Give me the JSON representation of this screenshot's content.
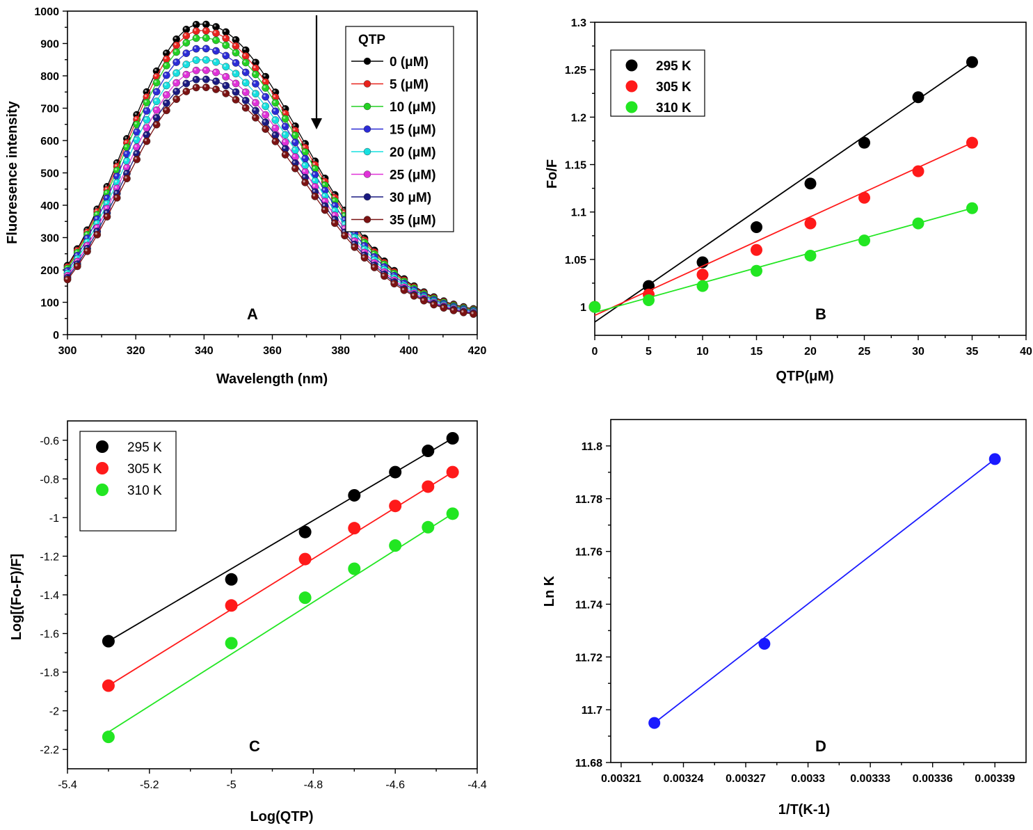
{
  "chart_data": [
    {
      "id": "A",
      "type": "line",
      "panel_label": "A",
      "title": "",
      "xlabel": "Wavelength (nm)",
      "ylabel": "Fluoresence intensity",
      "xlim": [
        300,
        420
      ],
      "ylim": [
        0,
        1000
      ],
      "xticks": [
        300,
        320,
        340,
        360,
        380,
        400,
        420
      ],
      "yticks": [
        0,
        100,
        200,
        300,
        400,
        500,
        600,
        700,
        800,
        900,
        1000
      ],
      "legend_title": "QTP",
      "legend_position": "top-right",
      "annotation": "downward arrow indicating decreasing intensity with increasing QTP",
      "x": [
        300,
        340,
        420
      ],
      "series": [
        {
          "name": "0 (μM)",
          "color": "#000000",
          "peak": 960
        },
        {
          "name": "5 (μM)",
          "color": "#e8231d",
          "peak": 940
        },
        {
          "name": "10 (μM)",
          "color": "#23d123",
          "peak": 918
        },
        {
          "name": "15 (μM)",
          "color": "#2b2bd6",
          "peak": 885
        },
        {
          "name": "20 (μM)",
          "color": "#16e0e0",
          "peak": 850
        },
        {
          "name": "25 (μM)",
          "color": "#e031d8",
          "peak": 818
        },
        {
          "name": "30 μM)",
          "color": "#1a1a80",
          "peak": 790
        },
        {
          "name": "35 (μM)",
          "color": "#7a1212",
          "peak": 765
        }
      ]
    },
    {
      "id": "B",
      "type": "scatter",
      "panel_label": "B",
      "xlabel": "QTP(μM)",
      "ylabel": "Fo/F",
      "xlim": [
        0,
        40
      ],
      "ylim": [
        0.97,
        1.3
      ],
      "xticks": [
        0,
        5,
        10,
        15,
        20,
        25,
        30,
        35,
        40
      ],
      "yticks": [
        1,
        1.05,
        1.1,
        1.15,
        1.2,
        1.25,
        1.3
      ],
      "legend_position": "top-left",
      "x": [
        0,
        5,
        10,
        15,
        20,
        25,
        30,
        35
      ],
      "series": [
        {
          "name": "295 K",
          "color": "#000000",
          "values": [
            1.0,
            1.022,
            1.047,
            1.084,
            1.13,
            1.173,
            1.221,
            1.258
          ],
          "fit": [
            [
              0,
              0.984
            ],
            [
              35,
              1.258
            ]
          ]
        },
        {
          "name": "305 K",
          "color": "#ff1a1a",
          "values": [
            1.0,
            1.013,
            1.034,
            1.06,
            1.088,
            1.115,
            1.143,
            1.173
          ],
          "fit": [
            [
              0,
              0.991
            ],
            [
              35,
              1.173
            ]
          ]
        },
        {
          "name": "310 K",
          "color": "#22e622",
          "values": [
            1.0,
            1.007,
            1.022,
            1.038,
            1.054,
            1.07,
            1.088,
            1.104
          ],
          "fit": [
            [
              0,
              0.994
            ],
            [
              35,
              1.104
            ]
          ]
        }
      ]
    },
    {
      "id": "C",
      "type": "scatter",
      "panel_label": "C",
      "xlabel": "Log(QTP)",
      "ylabel": "Log[(Fo-F)/F]",
      "xlim": [
        -5.4,
        -4.4
      ],
      "ylim": [
        -2.3,
        -0.5
      ],
      "xticks": [
        -5.4,
        -5.2,
        -5,
        -4.8,
        -4.6,
        -4.4
      ],
      "yticks": [
        -2.2,
        -2,
        -1.8,
        -1.6,
        -1.4,
        -1.2,
        -1,
        -0.8,
        -0.6
      ],
      "legend_position": "top-left",
      "x": [
        -5.3,
        -5.0,
        -4.82,
        -4.7,
        -4.6,
        -4.52,
        -4.46
      ],
      "series": [
        {
          "name": "295 K",
          "color": "#000000",
          "values": [
            -1.64,
            -1.32,
            -1.075,
            -0.885,
            -0.765,
            -0.655,
            -0.59
          ],
          "fit": [
            [
              -5.3,
              -1.64
            ],
            [
              -4.46,
              -0.59
            ]
          ]
        },
        {
          "name": "305 K",
          "color": "#ff1a1a",
          "values": [
            -1.87,
            -1.455,
            -1.215,
            -1.055,
            -0.94,
            -0.84,
            -0.765
          ],
          "fit": [
            [
              -5.3,
              -1.87
            ],
            [
              -4.46,
              -0.765
            ]
          ]
        },
        {
          "name": "310 K",
          "color": "#22e622",
          "values": [
            -2.135,
            -1.65,
            -1.415,
            -1.265,
            -1.145,
            -1.05,
            -0.98
          ],
          "fit": [
            [
              -5.3,
              -2.11
            ],
            [
              -4.46,
              -0.98
            ]
          ]
        }
      ]
    },
    {
      "id": "D",
      "type": "scatter",
      "panel_label": "D",
      "xlabel": "1/T(K-1)",
      "ylabel": "Ln K",
      "xlim": [
        0.003205,
        0.003405
      ],
      "ylim": [
        11.68,
        11.81
      ],
      "xticks": [
        0.00321,
        0.00324,
        0.00327,
        0.0033,
        0.00333,
        0.00336,
        0.00339
      ],
      "yticks": [
        11.68,
        11.7,
        11.72,
        11.74,
        11.76,
        11.78,
        11.8
      ],
      "x": [
        0.003226,
        0.003279,
        0.00339
      ],
      "series": [
        {
          "name": "Ln K",
          "color": "#1a1aff",
          "values": [
            11.695,
            11.725,
            11.795
          ],
          "fit": [
            [
              0.003226,
              11.695
            ],
            [
              0.00339,
              11.795
            ]
          ]
        }
      ]
    }
  ]
}
